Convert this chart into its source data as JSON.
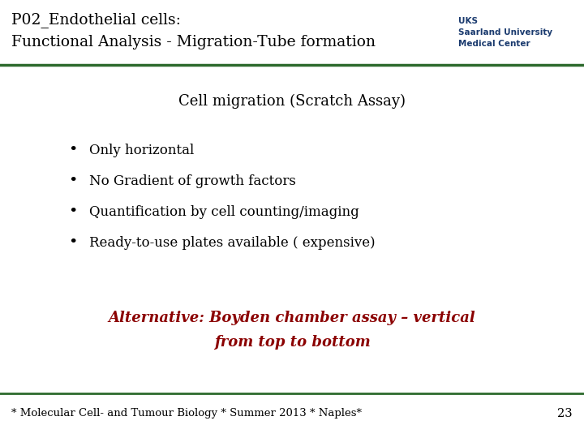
{
  "title_line1": "P02_Endothelial cells:",
  "title_line2": "Functional Analysis - Migration-Tube formation",
  "title_color": "#000000",
  "title_fontsize": 13.5,
  "header_line_color": "#2d6a2d",
  "section_title": "Cell migration (Scratch Assay)",
  "section_title_fontsize": 13,
  "bullet_points": [
    "Only horizontal",
    "No Gradient of growth factors",
    "Quantification by cell counting/imaging",
    "Ready-to-use plates available ( expensive)"
  ],
  "bullet_fontsize": 12,
  "bullet_color": "#000000",
  "alternative_line1": "Alternative: Boyden chamber assay – vertical",
  "alternative_line2": "from top to bottom",
  "alternative_color": "#8b0000",
  "alternative_fontsize": 13,
  "footer_text": "* Molecular Cell- and Tumour Biology * Summer 2013 * Naples*",
  "footer_page": "23",
  "footer_fontsize": 9.5,
  "footer_line_color": "#2d6a2d",
  "uks_text": "UKS\nSaarland University\nMedical Center",
  "uks_color": "#1a3a6e",
  "bg_color": "#ffffff"
}
